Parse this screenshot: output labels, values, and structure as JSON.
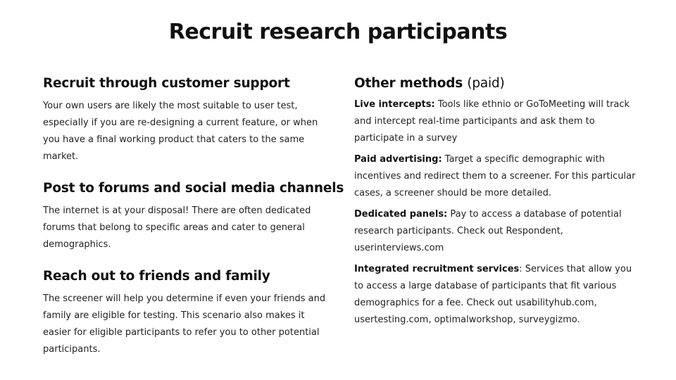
{
  "title": "Recruit research participants",
  "left_sections": [
    {
      "heading": "Recruit through customer support",
      "body": "Your own users are likely the most suitable to user test, especially if you are re-designing a current feature, or when you have a final working product that caters to the same market."
    },
    {
      "heading": "Post to forums and social media channels",
      "body": "The internet is at your disposal! There are often dedicated forums that belong to specific areas and cater to general demographics."
    },
    {
      "heading": "Reach out to friends and family",
      "body": "The screener will help you determine if even your friends and family are eligible for testing. This scenario also makes it easier for eligible participants to refer you to other potential participants."
    }
  ],
  "right_section": {
    "heading_bold": "Other methods",
    "heading_light": "(paid)",
    "items": [
      {
        "lead": "Live intercepts:",
        "text": "Tools like ethnio or GoToMeeting will track and intercept real-time participants and ask them to participate in a survey"
      },
      {
        "lead": "Paid advertising:",
        "text": "Target a specific demographic with incentives and redirect them to a screener. For this particular cases, a screener should be more detailed."
      },
      {
        "lead": "Dedicated panels:",
        "text": "Pay to access a database of potential research participants. Check out Respondent, userinterviews.com"
      },
      {
        "lead": "Integrated recruitment services",
        "text": ": Services that allow you to access a large database of participants that fit various demographics for a fee. Check out usabilityhub.com, usertesting.com, optimalworkshop, surveygizmo."
      }
    ]
  }
}
